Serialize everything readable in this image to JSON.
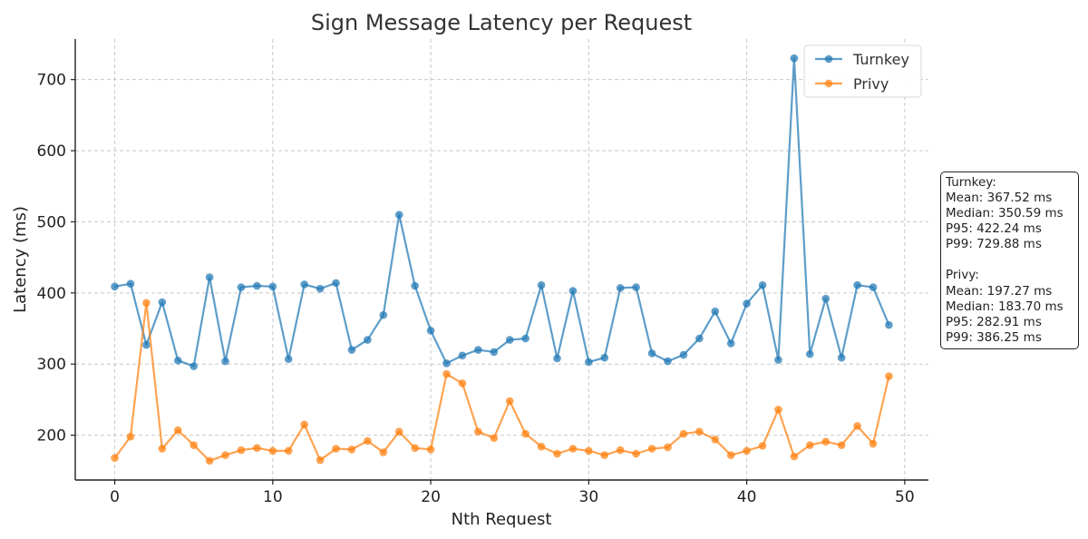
{
  "chart_data": {
    "type": "line",
    "title": "Sign Message Latency per Request",
    "xlabel": "Nth Request",
    "ylabel": "Latency (ms)",
    "xlim": [
      -2.5,
      51.5
    ],
    "ylim": [
      137,
      757
    ],
    "xticks": [
      0,
      10,
      20,
      30,
      40,
      50
    ],
    "yticks": [
      200,
      300,
      400,
      500,
      600,
      700
    ],
    "grid": true,
    "legend_position": "top-right",
    "x": [
      0,
      1,
      2,
      3,
      4,
      5,
      6,
      7,
      8,
      9,
      10,
      11,
      12,
      13,
      14,
      15,
      16,
      17,
      18,
      19,
      20,
      21,
      22,
      23,
      24,
      25,
      26,
      27,
      28,
      29,
      30,
      31,
      32,
      33,
      34,
      35,
      36,
      37,
      38,
      39,
      40,
      41,
      42,
      43,
      44,
      45,
      46,
      47,
      48,
      49
    ],
    "series": [
      {
        "name": "Turnkey",
        "color": "#1f77b4",
        "values": [
          409,
          413,
          327,
          387,
          305,
          297,
          422,
          304,
          408,
          410,
          409,
          307,
          412,
          406,
          414,
          320,
          334,
          369,
          510,
          410,
          347,
          301,
          312,
          320,
          317,
          334,
          336,
          411,
          308,
          403,
          303,
          309,
          407,
          408,
          315,
          304,
          313,
          336,
          374,
          329,
          385,
          411,
          306,
          730,
          314,
          392,
          309,
          411,
          408,
          355
        ]
      },
      {
        "name": "Privy",
        "color": "#ff7f0e",
        "values": [
          168,
          198,
          386,
          181,
          207,
          186,
          164,
          172,
          179,
          182,
          178,
          178,
          215,
          165,
          181,
          180,
          192,
          176,
          205,
          182,
          180,
          286,
          273,
          205,
          196,
          248,
          202,
          184,
          174,
          181,
          178,
          172,
          179,
          174,
          181,
          183,
          202,
          205,
          194,
          172,
          178,
          185,
          236,
          170,
          186,
          191,
          186,
          213,
          188,
          283
        ]
      }
    ]
  },
  "stats_box": {
    "turnkey_header": "Turnkey:",
    "turnkey_mean": "Mean: 367.52 ms",
    "turnkey_median": "Median: 350.59 ms",
    "turnkey_p95": "P95: 422.24 ms",
    "turnkey_p99": "P99: 729.88 ms",
    "privy_header": "Privy:",
    "privy_mean": "Mean: 197.27 ms",
    "privy_median": "Median: 183.70 ms",
    "privy_p95": "P95: 282.91 ms",
    "privy_p99": "P99: 386.25 ms"
  }
}
